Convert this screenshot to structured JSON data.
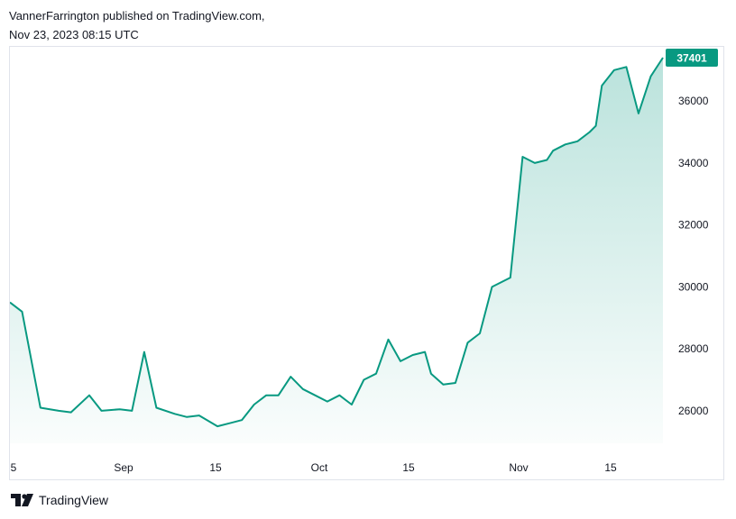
{
  "header": {
    "publisher_line": "VannerFarrington published on TradingView.com,",
    "timestamp_line": "Nov 23, 2023 08:15 UTC"
  },
  "footer": {
    "brand": "TradingView",
    "logo_icon": "tradingview-logo-icon"
  },
  "colors": {
    "line": "#089981",
    "area_top": "#089981",
    "price_label_bg": "#089981",
    "axis_text": "#131722",
    "frame": "#e0e3eb"
  },
  "chart_data": {
    "type": "area",
    "x_tick_labels": [
      "5",
      "Sep",
      "15",
      "Oct",
      "15",
      "Nov",
      "15"
    ],
    "y_tick_labels": [
      "26000",
      "28000",
      "30000",
      "32000",
      "34000",
      "36000"
    ],
    "ylim": [
      24950,
      37750
    ],
    "last_price_label": "37401",
    "x": [
      0,
      2,
      5,
      8,
      10,
      13,
      15,
      18,
      20,
      22,
      24,
      27,
      29,
      31,
      34,
      36,
      38,
      40,
      42,
      44,
      46,
      48,
      50,
      52,
      54,
      56,
      58,
      60,
      62,
      64,
      66,
      68,
      69,
      71,
      73,
      75,
      77,
      79,
      82,
      84,
      86,
      88,
      89,
      91,
      93,
      95,
      96,
      97,
      99,
      101,
      103,
      105,
      107
    ],
    "values": [
      29500,
      29200,
      26100,
      26000,
      25950,
      26500,
      26000,
      26050,
      26000,
      27900,
      26100,
      25900,
      25800,
      25850,
      25500,
      25600,
      25700,
      26200,
      26500,
      26500,
      27100,
      26700,
      26500,
      26300,
      26500,
      26200,
      27000,
      27200,
      28300,
      27600,
      27800,
      27900,
      27200,
      26850,
      26900,
      28200,
      28500,
      30000,
      30300,
      34200,
      34000,
      34100,
      34400,
      34600,
      34700,
      35000,
      35200,
      36500,
      37000,
      37100,
      35600,
      36800,
      37401
    ]
  }
}
